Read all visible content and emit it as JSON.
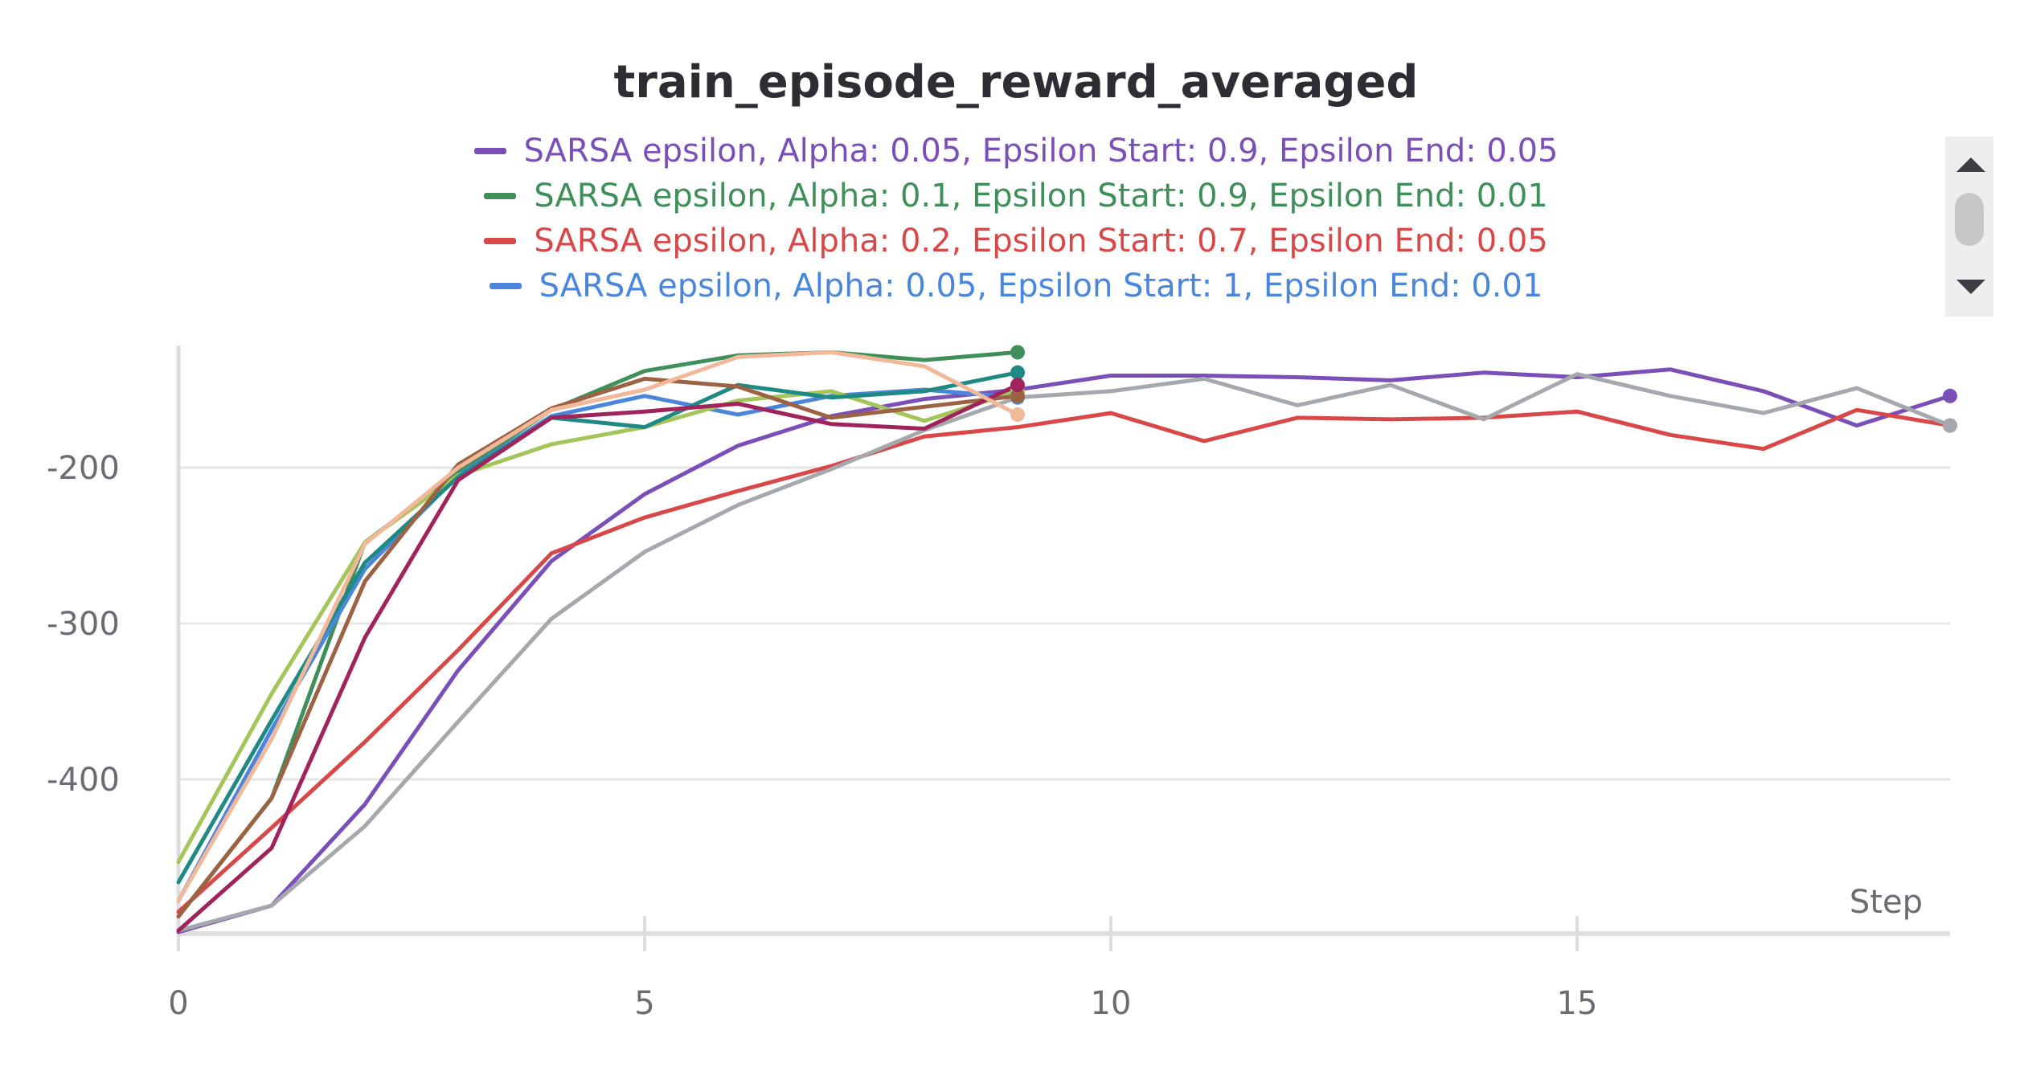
{
  "chart_data": {
    "type": "line",
    "title": "train_episode_reward_averaged",
    "xlabel": "Step",
    "ylabel": "",
    "xlim": [
      0,
      19
    ],
    "ylim": [
      -500,
      -120
    ],
    "xticks": [
      0,
      5,
      10,
      15
    ],
    "yticks": [
      -200,
      -300,
      -400
    ],
    "grid": true,
    "legend_position": "top",
    "legend": [
      {
        "label": "SARSA epsilon, Alpha: 0.05, Epsilon Start: 0.9, Epsilon End: 0.05",
        "color": "#7b4fb8"
      },
      {
        "label": "SARSA epsilon, Alpha: 0.1, Epsilon Start: 0.9, Epsilon End: 0.01",
        "color": "#3f8f5a"
      },
      {
        "label": "SARSA epsilon, Alpha: 0.2, Epsilon Start: 0.7, Epsilon End: 0.05",
        "color": "#d94848"
      },
      {
        "label": "SARSA epsilon, Alpha: 0.05, Epsilon Start: 1, Epsilon End: 0.01",
        "color": "#4a86db"
      }
    ],
    "series": [
      {
        "name": "SARSA epsilon, Alpha: 0.05, Epsilon Start: 0.9, Epsilon End: 0.05",
        "color": "#7b4fb8",
        "x": [
          0,
          1,
          2,
          3,
          4,
          5,
          6,
          7,
          8,
          9,
          10,
          11,
          12,
          13,
          14,
          15,
          16,
          17,
          18,
          19
        ],
        "y": [
          -498,
          -481,
          -416,
          -330,
          -260,
          -217,
          -186,
          -167,
          -156,
          -150,
          -141,
          -141,
          -142,
          -144,
          -139,
          -142,
          -137,
          -151,
          -173,
          -154
        ]
      },
      {
        "name": "SARSA epsilon, Alpha: 0.1, Epsilon Start: 0.9, Epsilon End: 0.01",
        "color": "#3f8f5a",
        "x": [
          0,
          1,
          2,
          3,
          4,
          5,
          6,
          7,
          8,
          9
        ],
        "y": [
          -488,
          -412,
          -248,
          -203,
          -163,
          -138,
          -128,
          -126,
          -131,
          -126
        ]
      },
      {
        "name": "SARSA epsilon, Alpha: 0.2, Epsilon Start: 0.7, Epsilon End: 0.05",
        "color": "#d94848",
        "x": [
          0,
          1,
          2,
          3,
          4,
          5,
          6,
          7,
          8,
          9,
          10,
          11,
          12,
          13,
          14,
          15,
          16,
          17,
          18,
          19
        ],
        "y": [
          -485,
          -431,
          -376,
          -317,
          -255,
          -232,
          -215,
          -199,
          -180,
          -174,
          -165,
          -183,
          -168,
          -169,
          -168,
          -164,
          -179,
          -188,
          -163,
          -173
        ]
      },
      {
        "name": "SARSA epsilon, Alpha: 0.05, Epsilon Start: 1, Epsilon End: 0.01",
        "color": "#4a86db",
        "x": [
          0,
          1,
          2,
          3,
          4,
          5,
          6,
          7,
          8,
          9
        ],
        "y": [
          -478,
          -368,
          -265,
          -205,
          -167,
          -154,
          -166,
          -154,
          -150,
          -155
        ]
      },
      {
        "color": "#a5a8ac",
        "x": [
          0,
          1,
          2,
          3,
          4,
          5,
          6,
          7,
          8,
          9,
          10,
          11,
          12,
          13,
          14,
          15,
          16,
          17,
          18,
          19
        ],
        "y": [
          -497,
          -481,
          -430,
          -363,
          -297,
          -254,
          -224,
          -201,
          -176,
          -155,
          -151,
          -143,
          -160,
          -147,
          -169,
          -140,
          -154,
          -165,
          -149,
          -173
        ]
      },
      {
        "color": "#a3c55a",
        "x": [
          0,
          1,
          2,
          3,
          4,
          5,
          6,
          7,
          8,
          9
        ],
        "y": [
          -453,
          -345,
          -248,
          -205,
          -185,
          -174,
          -157,
          -151,
          -170,
          -151
        ]
      },
      {
        "color": "#1f8a84",
        "x": [
          0,
          1,
          2,
          3,
          4,
          5,
          6,
          7,
          8,
          9
        ],
        "y": [
          -466,
          -362,
          -261,
          -206,
          -168,
          -174,
          -147,
          -155,
          -151,
          -139
        ]
      },
      {
        "color": "#9c6244",
        "x": [
          0,
          1,
          2,
          3,
          4,
          5,
          6,
          7,
          8,
          9
        ],
        "y": [
          -488,
          -412,
          -273,
          -198,
          -162,
          -143,
          -148,
          -168,
          -161,
          -154
        ]
      },
      {
        "color": "#a1235c",
        "x": [
          0,
          1,
          2,
          3,
          4,
          5,
          6,
          7,
          8,
          9
        ],
        "y": [
          -497,
          -444,
          -309,
          -208,
          -168,
          -164,
          -159,
          -172,
          -175,
          -147
        ]
      },
      {
        "color": "#f2b899",
        "x": [
          0,
          1,
          2,
          3,
          4,
          5,
          6,
          7,
          8,
          9
        ],
        "y": [
          -478,
          -374,
          -249,
          -200,
          -163,
          -150,
          -129,
          -126,
          -135,
          -166
        ]
      }
    ]
  }
}
